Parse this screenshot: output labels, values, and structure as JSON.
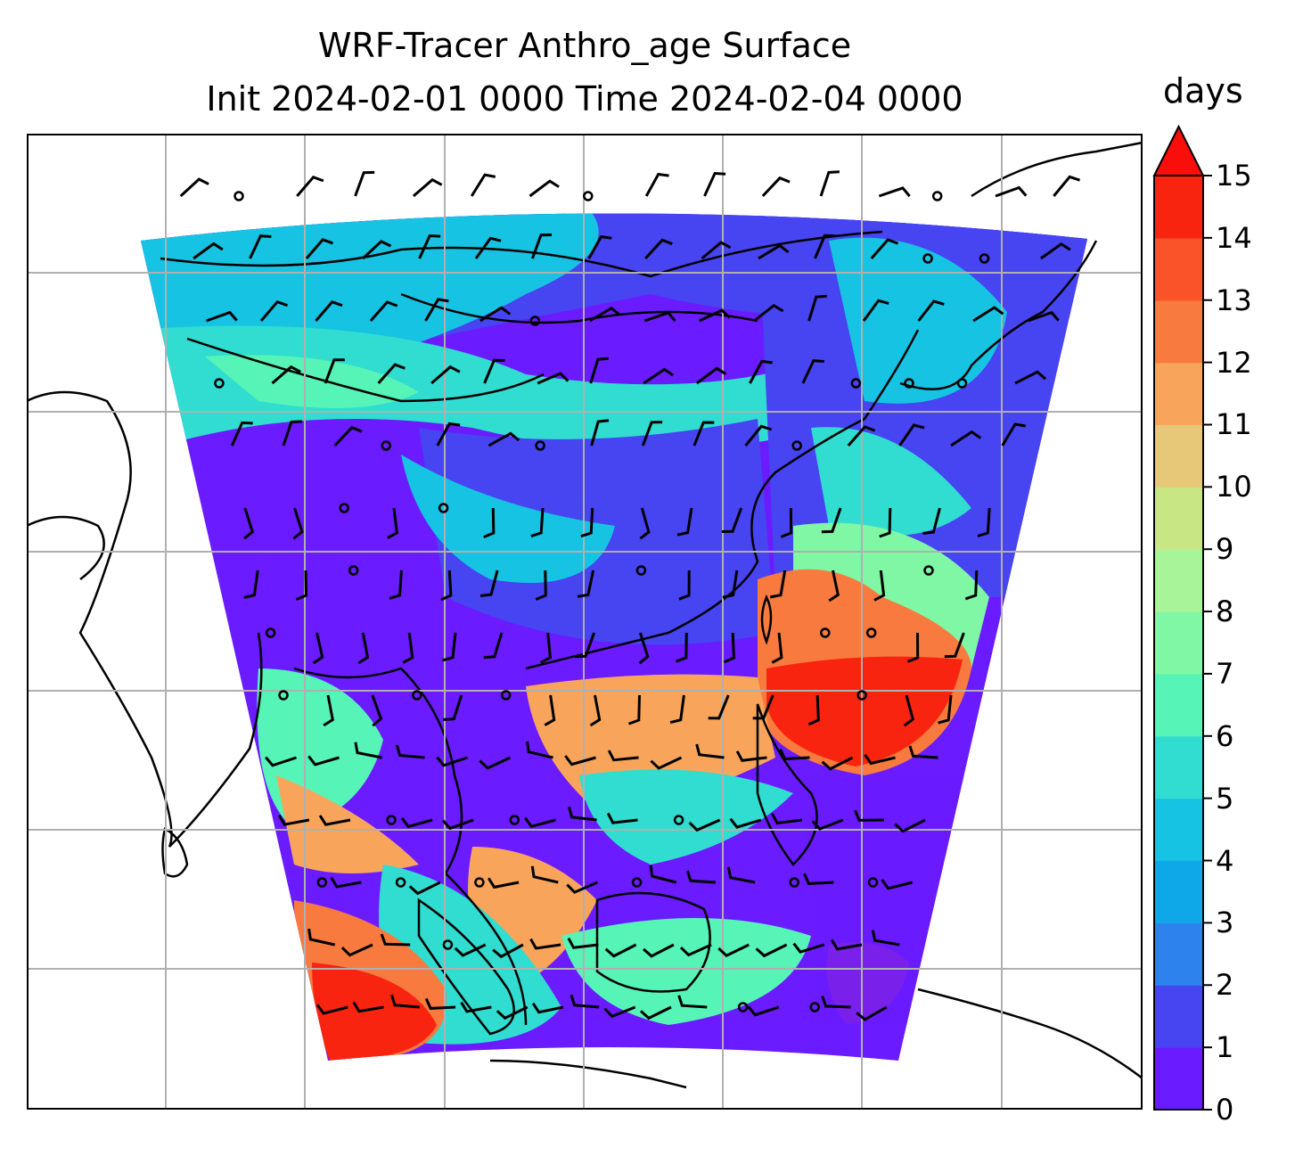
{
  "title": {
    "line1": "WRF-Tracer Anthro_age Surface",
    "line2": "Init 2024-02-01 0000 Time 2024-02-04 0000"
  },
  "colorbar": {
    "units": "days",
    "ticks": [
      "0",
      "1",
      "2",
      "3",
      "4",
      "5",
      "6",
      "7",
      "8",
      "9",
      "10",
      "11",
      "12",
      "13",
      "14",
      "15"
    ],
    "extend": "max",
    "colors": [
      "#6a1bff",
      "#4744f2",
      "#2d82ee",
      "#0ea7e8",
      "#16c3e2",
      "#30ddd0",
      "#56f4b7",
      "#7ff7a5",
      "#a7f499",
      "#c9e684",
      "#e6c878",
      "#f8a55b",
      "#f87a3e",
      "#fa532a",
      "#f9240f",
      "#f90e0b"
    ]
  },
  "map": {
    "gridlines": true,
    "meridian_count": 7,
    "parallel_count": 6,
    "field": "Anthro_age",
    "vector_overlay": "wind barbs"
  }
}
